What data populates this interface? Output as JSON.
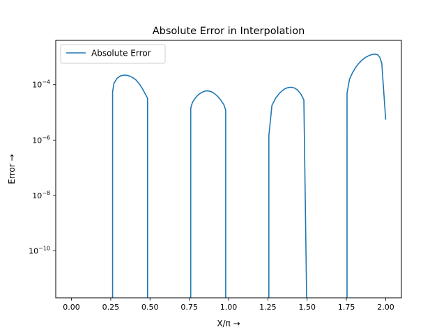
{
  "chart_data": {
    "type": "line",
    "title": "Absolute Error in Interpolation",
    "xlabel": "X/π →",
    "ylabel": "Error  →",
    "yscale": "log",
    "xlim": [
      -0.1,
      2.1
    ],
    "ylim": [
      2e-12,
      0.004
    ],
    "xticks": [
      0.0,
      0.25,
      0.5,
      0.75,
      1.0,
      1.25,
      1.5,
      1.75,
      2.0
    ],
    "xtick_labels": [
      "0.00",
      "0.25",
      "0.50",
      "0.75",
      "1.00",
      "1.25",
      "1.50",
      "1.75",
      "2.00"
    ],
    "yticks": [
      1e-10,
      1e-08,
      1e-06,
      0.0001
    ],
    "ytick_labels": [
      {
        "base": "10",
        "exp": "−10"
      },
      {
        "base": "10",
        "exp": "−8"
      },
      {
        "base": "10",
        "exp": "−6"
      },
      {
        "base": "10",
        "exp": "−4"
      }
    ],
    "grid": false,
    "legend": {
      "position": "upper-left",
      "entries": [
        "Absolute Error"
      ]
    },
    "colors": {
      "series": "#1f77b4"
    },
    "series": [
      {
        "name": "Absolute Error",
        "points": [
          [
            0.2618,
            1e-13
          ],
          [
            0.2618,
            5.5e-05
          ],
          [
            0.27,
            0.00011
          ],
          [
            0.29,
            0.00017
          ],
          [
            0.31,
            0.000205
          ],
          [
            0.33,
            0.00022
          ],
          [
            0.35,
            0.00022
          ],
          [
            0.37,
            0.000205
          ],
          [
            0.39,
            0.00018
          ],
          [
            0.41,
            0.00015
          ],
          [
            0.43,
            0.00011
          ],
          [
            0.45,
            7.5e-05
          ],
          [
            0.47,
            4.6e-05
          ],
          [
            0.4844,
            3.2e-05
          ],
          [
            0.4844,
            1e-13
          ],
          [
            0.7592,
            1e-13
          ],
          [
            0.7592,
            1.4e-05
          ],
          [
            0.77,
            2.3e-05
          ],
          [
            0.79,
            3.4e-05
          ],
          [
            0.81,
            4.5e-05
          ],
          [
            0.83,
            5.3e-05
          ],
          [
            0.85,
            5.9e-05
          ],
          [
            0.87,
            6e-05
          ],
          [
            0.89,
            5.6e-05
          ],
          [
            0.91,
            4.8e-05
          ],
          [
            0.93,
            3.8e-05
          ],
          [
            0.95,
            2.8e-05
          ],
          [
            0.97,
            1.9e-05
          ],
          [
            0.9818,
            1.2e-05
          ],
          [
            0.9818,
            1e-13
          ],
          [
            1.2566,
            1e-13
          ],
          [
            1.2566,
            1.5e-06
          ],
          [
            1.26,
            2.3e-06
          ],
          [
            1.276,
            1.8e-05
          ],
          [
            1.3,
            3.3e-05
          ],
          [
            1.32,
            4.6e-05
          ],
          [
            1.34,
            6e-05
          ],
          [
            1.36,
            7.2e-05
          ],
          [
            1.38,
            7.9e-05
          ],
          [
            1.4,
            8.1e-05
          ],
          [
            1.42,
            7.6e-05
          ],
          [
            1.44,
            6.3e-05
          ],
          [
            1.46,
            4.6e-05
          ],
          [
            1.4792,
            2.8e-05
          ],
          [
            1.5,
            1e-13
          ],
          [
            1.754,
            1e-13
          ],
          [
            1.754,
            5e-05
          ],
          [
            1.77,
            0.00016
          ],
          [
            1.79,
            0.00028
          ],
          [
            1.81,
            0.00043
          ],
          [
            1.83,
            0.0006
          ],
          [
            1.85,
            0.00078
          ],
          [
            1.87,
            0.00096
          ],
          [
            1.89,
            0.0011
          ],
          [
            1.91,
            0.00122
          ],
          [
            1.93,
            0.00128
          ],
          [
            1.95,
            0.0012
          ],
          [
            1.9635,
            0.00095
          ],
          [
            1.975,
            0.0006
          ],
          [
            2.0,
            5.5e-06
          ]
        ]
      }
    ]
  }
}
